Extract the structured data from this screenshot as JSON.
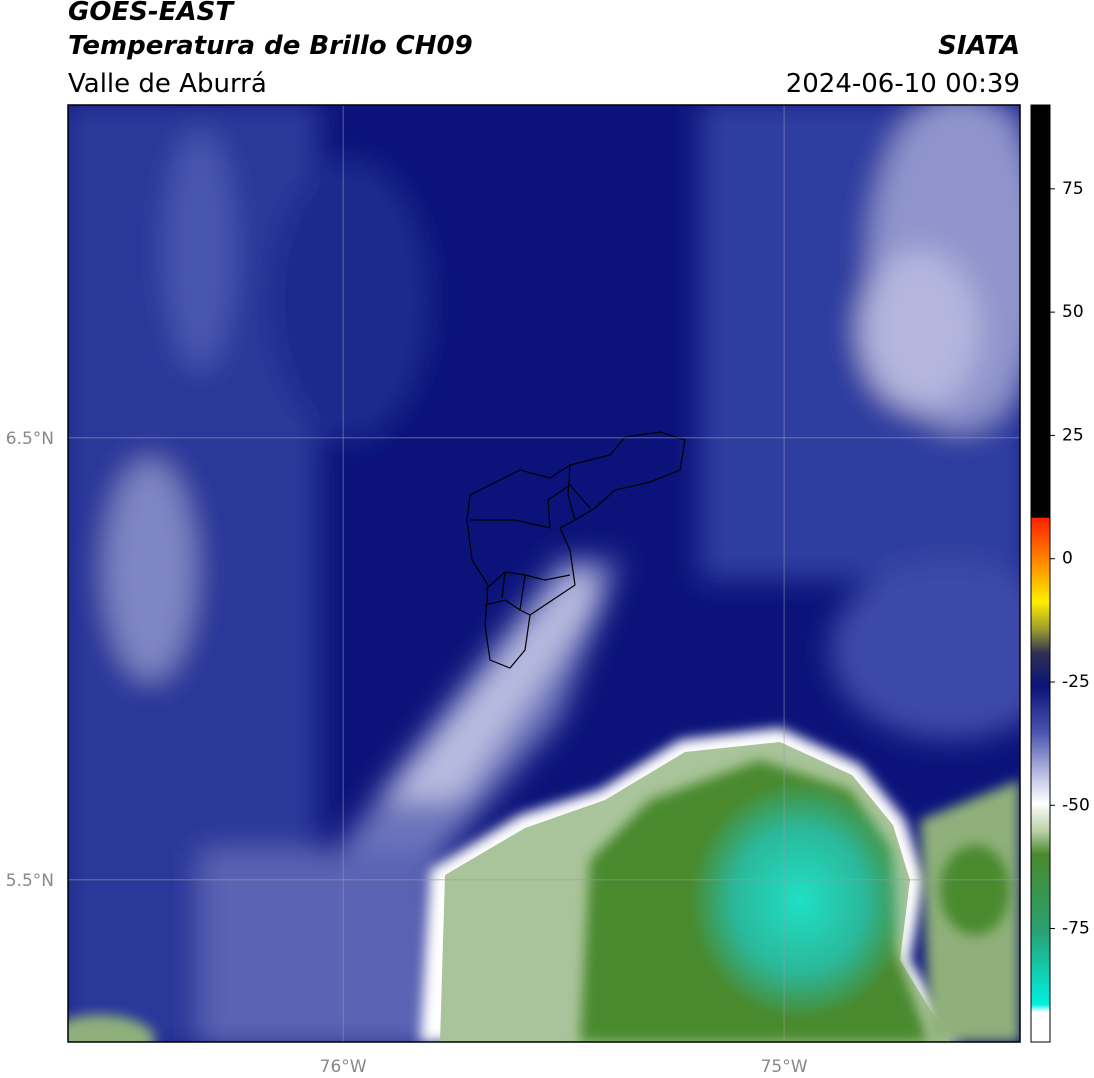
{
  "header": {
    "title": "GOES-EAST",
    "subtitle": "Temperatura de Brillo CH09",
    "region": "Valle de Aburrá",
    "source": "SIATA",
    "datetime": "2024-06-10 00:39"
  },
  "map": {
    "lon_range": [
      -76.624,
      -74.465
    ],
    "lat_range": [
      5.133,
      7.253
    ],
    "lon_ticks": [
      {
        "value": -76,
        "label": "76°W"
      },
      {
        "value": -75,
        "label": "75°W"
      }
    ],
    "lat_ticks": [
      {
        "value": 6.5,
        "label": "6.5°N"
      },
      {
        "value": 5.5,
        "label": "5.5°N"
      }
    ]
  },
  "colorbar": {
    "range": [
      -98,
      92
    ],
    "ticks": [
      -75,
      -50,
      -25,
      0,
      25,
      50,
      75
    ]
  }
}
